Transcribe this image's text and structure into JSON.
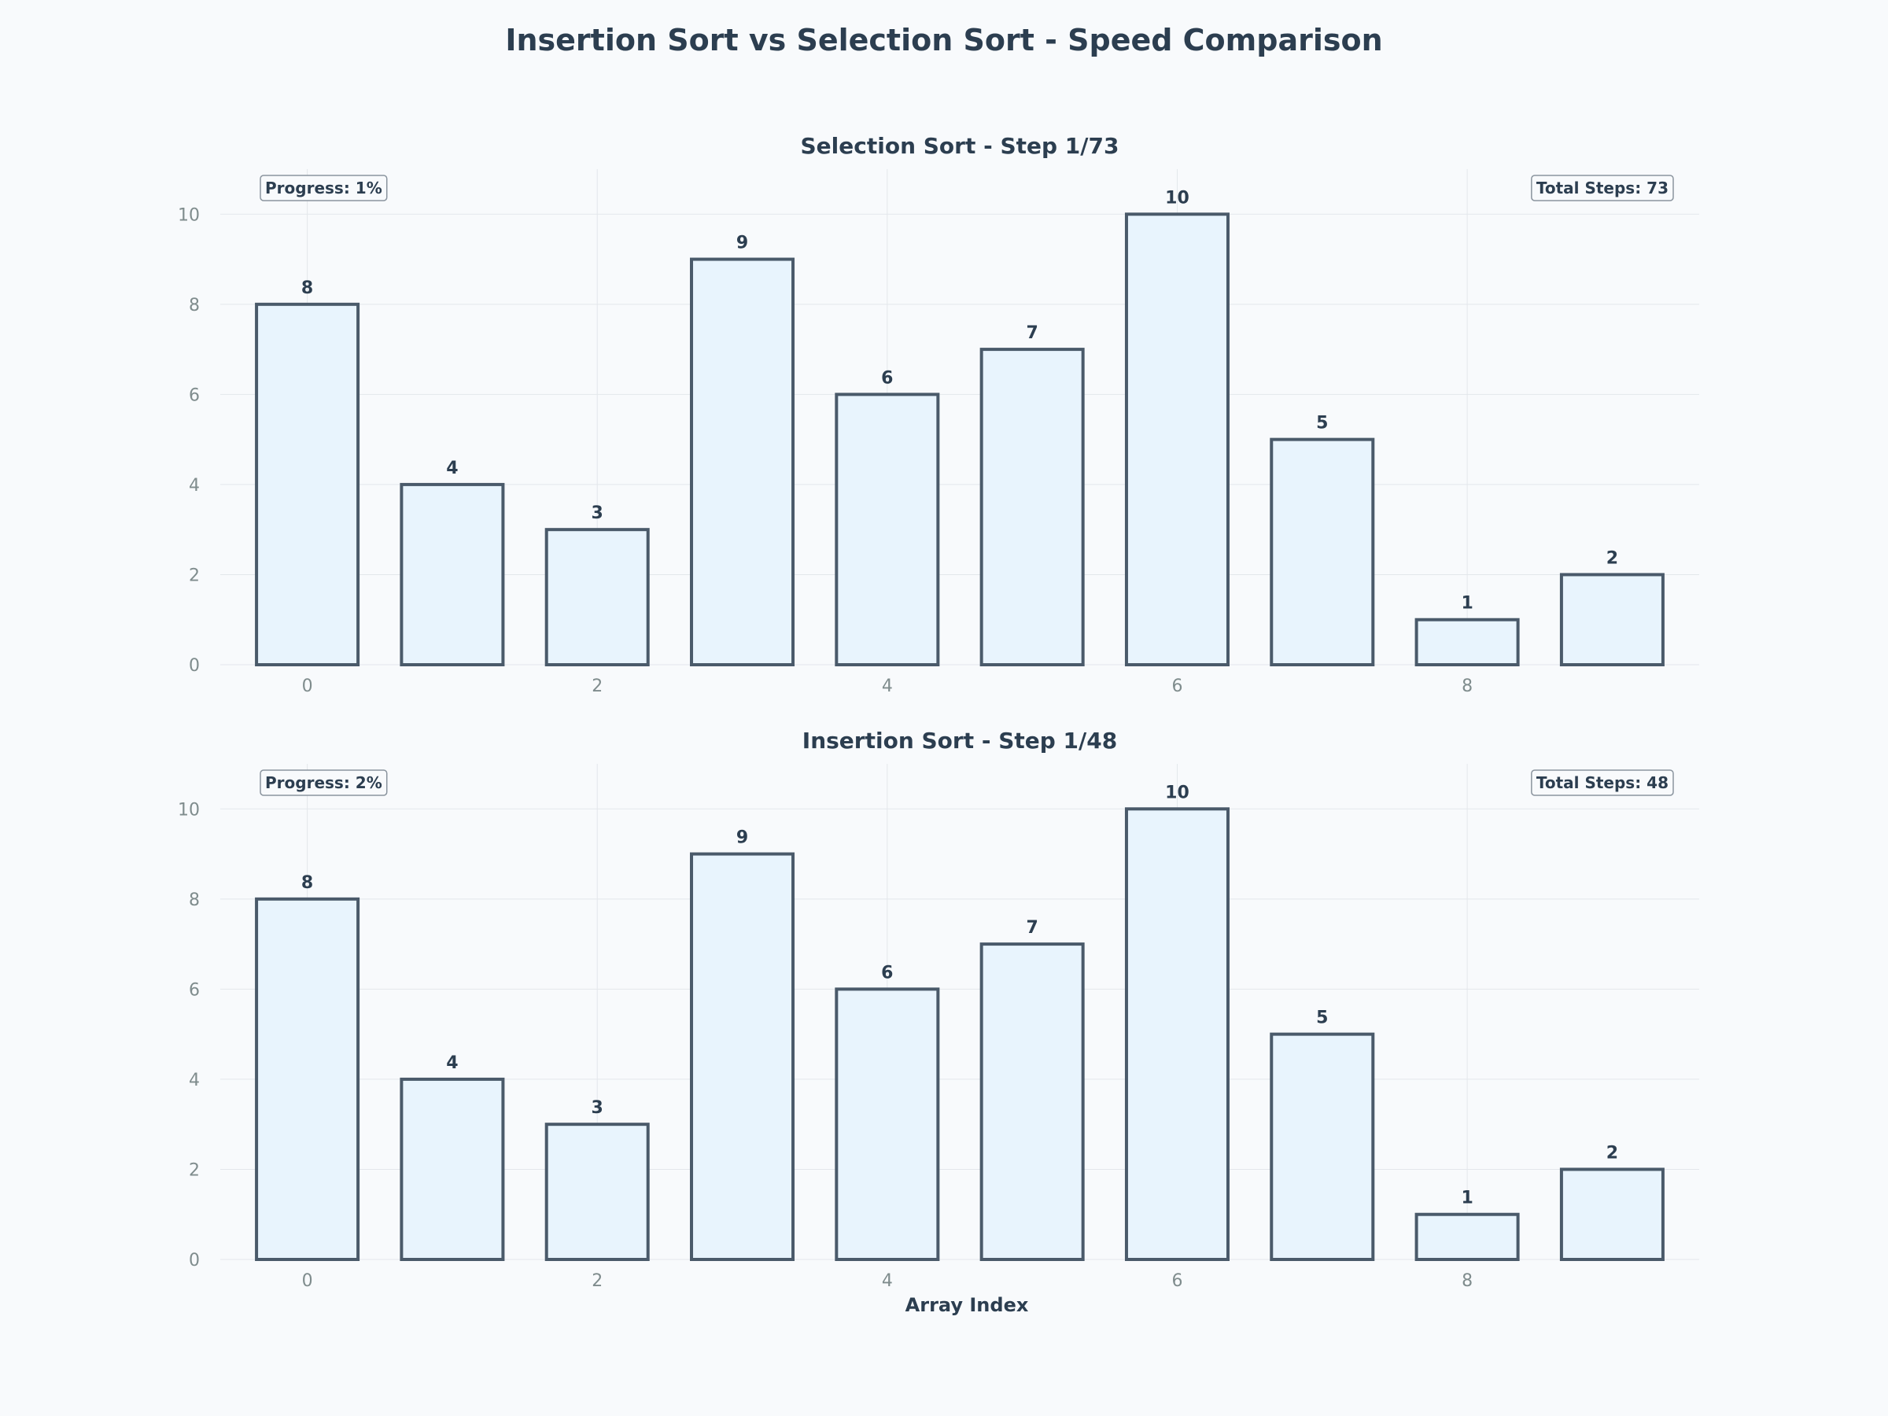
{
  "figure": {
    "title": "Insertion Sort vs Selection Sort - Speed Comparison",
    "xlabel": "Array Index"
  },
  "chart_data": [
    {
      "type": "bar",
      "title": "Selection Sort - Step 1/73",
      "progress_label": "Progress: 1%",
      "total_steps_label": "Total Steps: 73",
      "x": [
        0,
        1,
        2,
        3,
        4,
        5,
        6,
        7,
        8,
        9
      ],
      "values": [
        8,
        4,
        3,
        9,
        6,
        7,
        10,
        5,
        1,
        2
      ],
      "xticks": [
        0,
        2,
        4,
        6,
        8
      ],
      "yticks": [
        0,
        2,
        4,
        6,
        8,
        10
      ],
      "ylim": [
        0,
        11
      ],
      "xlim": [
        -0.6,
        9.6
      ],
      "grid": true,
      "bar_fill": "#e8f4fd",
      "bar_edge": "#4a5a6a"
    },
    {
      "type": "bar",
      "title": "Insertion Sort - Step 1/48",
      "progress_label": "Progress: 2%",
      "total_steps_label": "Total Steps: 48",
      "x": [
        0,
        1,
        2,
        3,
        4,
        5,
        6,
        7,
        8,
        9
      ],
      "values": [
        8,
        4,
        3,
        9,
        6,
        7,
        10,
        5,
        1,
        2
      ],
      "xticks": [
        0,
        2,
        4,
        6,
        8
      ],
      "yticks": [
        0,
        2,
        4,
        6,
        8,
        10
      ],
      "ylim": [
        0,
        11
      ],
      "xlim": [
        -0.6,
        9.6
      ],
      "grid": true,
      "bar_fill": "#e8f4fd",
      "bar_edge": "#4a5a6a",
      "xlabel": "Array Index"
    }
  ]
}
